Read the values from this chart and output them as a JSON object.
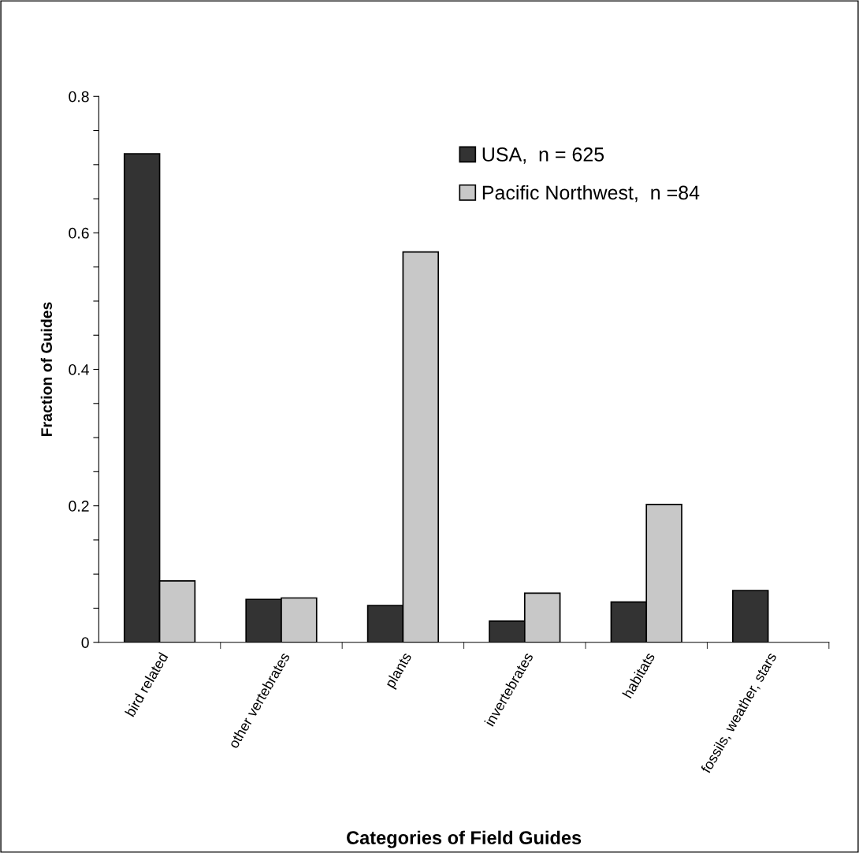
{
  "chart_data": {
    "type": "bar",
    "xlabel": "Categories of Field Guides",
    "ylabel": "Fraction of Guides",
    "categories": [
      "bird related",
      "other vertebrates",
      "plants",
      "invertebrates",
      "habitats",
      "fossils, weather, stars"
    ],
    "series": [
      {
        "name": "USA,  n = 625",
        "color": "#333333",
        "values": [
          0.716,
          0.063,
          0.054,
          0.031,
          0.059,
          0.076
        ]
      },
      {
        "name": "Pacific Northwest,  n =84",
        "color": "#c8c8c8",
        "values": [
          0.09,
          0.065,
          0.572,
          0.072,
          0.202,
          null
        ]
      }
    ],
    "ylim": [
      0,
      0.8
    ],
    "yticks": [
      0,
      {
        "value": 0.05,
        "label": null
      },
      {
        "value": 0.1,
        "label": null
      },
      {
        "value": 0.15,
        "label": null
      },
      0.2,
      {
        "value": 0.25,
        "label": null
      },
      {
        "value": 0.3,
        "label": null
      },
      {
        "value": 0.35,
        "label": null
      },
      0.4,
      {
        "value": 0.45,
        "label": null
      },
      {
        "value": 0.5,
        "label": null
      },
      {
        "value": 0.55,
        "label": null
      },
      0.6,
      {
        "value": 0.65,
        "label": null
      },
      {
        "value": 0.7,
        "label": null
      },
      {
        "value": 0.75,
        "label": null
      },
      0.8
    ],
    "grid": false,
    "legend": "top right"
  }
}
